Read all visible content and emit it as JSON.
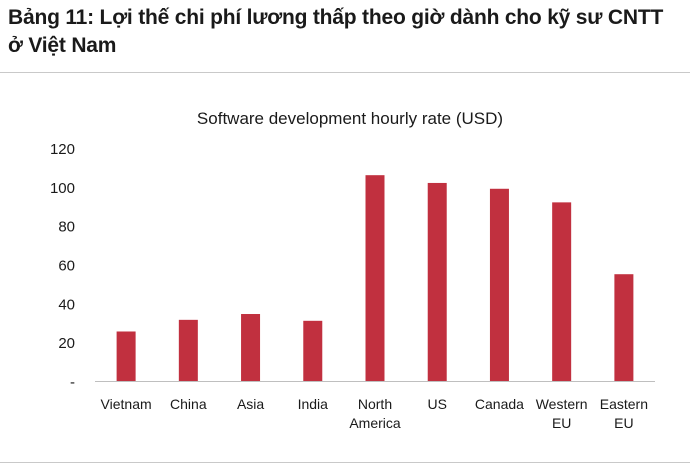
{
  "header": {
    "title": "Bảng 11: Lợi thế chi phí lương thấp theo giờ dành cho kỹ sư CNTT ở Việt Nam"
  },
  "colors": {
    "bar": "#c1303f",
    "axis": "#bfbfbf",
    "text": "#1a1a1a"
  },
  "chart_data": {
    "type": "bar",
    "title": "Software development hourly rate (USD)",
    "xlabel": "",
    "ylabel": "",
    "ylim": [
      0,
      120
    ],
    "yticks": [
      0,
      20,
      40,
      60,
      80,
      100,
      120
    ],
    "ytick_labels": [
      "-",
      "20",
      "40",
      "60",
      "80",
      "100",
      "120"
    ],
    "grid": false,
    "legend": "none",
    "categories": [
      "Vietnam",
      "China",
      "Asia",
      "India",
      "North America",
      "US",
      "Canada",
      "Western EU",
      "Eastern EU"
    ],
    "category_lines": [
      [
        "Vietnam"
      ],
      [
        "China"
      ],
      [
        "Asia"
      ],
      [
        "India"
      ],
      [
        "North",
        "America"
      ],
      [
        "US"
      ],
      [
        "Canada"
      ],
      [
        "Western",
        "EU"
      ],
      [
        "Eastern",
        "EU"
      ]
    ],
    "series": [
      {
        "name": "Hourly rate (USD)",
        "values": [
          25.5,
          31.5,
          34.5,
          31,
          106,
          102,
          99,
          92,
          55
        ]
      }
    ]
  }
}
